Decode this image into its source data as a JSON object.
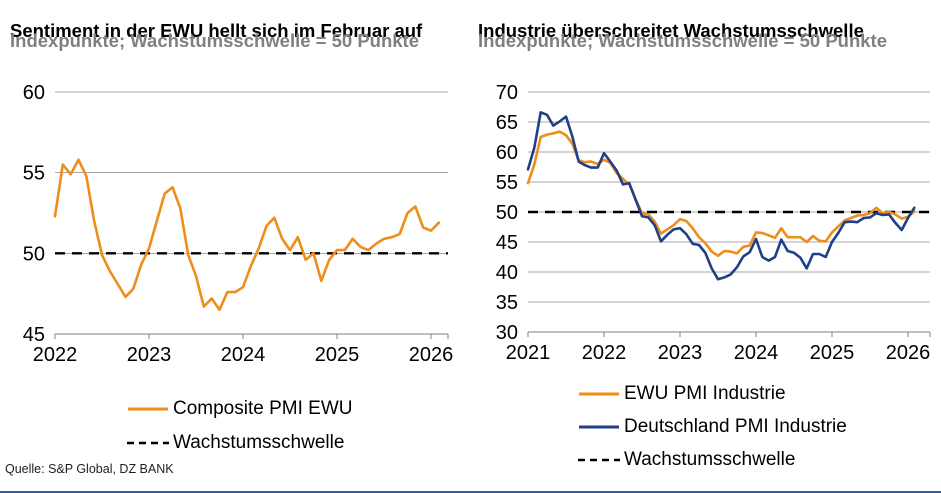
{
  "style": {
    "grid_color": "#a8a8a8",
    "axis_color": "#7f7f7f",
    "threshold_color": "#000000",
    "subtitle_color": "#808080",
    "orange": "#ee8d1a",
    "blue": "#1f4088"
  },
  "footer": {
    "source": "Quelle: S&P Global, DZ BANK"
  },
  "chart_data": [
    {
      "type": "line",
      "title": "Sentiment in der EWU hellt sich im Februar auf",
      "subtitle": "Indexpunkte; Wachstumsschwelle = 50 Punkte",
      "x_frequency": "monthly",
      "x_start": "2022-01",
      "x_end": "2026-02",
      "x_tick_labels": [
        "2022",
        "2023",
        "2024",
        "2025",
        "2026"
      ],
      "ylim": [
        45,
        60
      ],
      "yticks": [
        45,
        50,
        55,
        60
      ],
      "grid": true,
      "legend_position": "bottom",
      "threshold": {
        "label": "Wachstumsschwelle",
        "value": 50,
        "style": "dashed"
      },
      "series": [
        {
          "name": "Composite PMI EWU",
          "color": "#ee8d1a",
          "values": [
            52.3,
            55.5,
            54.9,
            55.8,
            54.8,
            52.0,
            49.9,
            48.9,
            48.1,
            47.3,
            47.8,
            49.3,
            50.3,
            52.0,
            53.7,
            54.1,
            52.8,
            49.9,
            48.6,
            46.7,
            47.2,
            46.5,
            47.6,
            47.6,
            47.9,
            49.2,
            50.3,
            51.7,
            52.2,
            50.9,
            50.2,
            51.0,
            49.6,
            50.0,
            48.3,
            49.6,
            50.2,
            50.2,
            50.9,
            50.4,
            50.2,
            50.6,
            50.9,
            51.0,
            51.2,
            52.5,
            52.9,
            51.6,
            51.4,
            51.9
          ]
        }
      ]
    },
    {
      "type": "line",
      "title": "Industrie überschreitet Wachstumsschwelle",
      "subtitle": "Indexpunkte; Wachstumsschwelle = 50 Punkte",
      "x_frequency": "monthly",
      "x_start": "2021-01",
      "x_end": "2026-02",
      "x_tick_labels": [
        "2021",
        "2022",
        "2023",
        "2024",
        "2025",
        "2026"
      ],
      "ylim": [
        30,
        70
      ],
      "yticks": [
        30,
        35,
        40,
        45,
        50,
        55,
        60,
        65,
        70
      ],
      "grid": true,
      "legend_position": "bottom",
      "threshold": {
        "label": "Wachstumsschwelle",
        "value": 50,
        "style": "dashed"
      },
      "series": [
        {
          "name": "EWU PMI Industrie",
          "color": "#ee8d1a",
          "values": [
            54.8,
            57.9,
            62.5,
            62.9,
            63.1,
            63.4,
            62.8,
            61.4,
            58.6,
            58.3,
            58.4,
            58.0,
            58.7,
            58.2,
            56.5,
            55.5,
            54.6,
            52.1,
            49.8,
            49.6,
            48.4,
            46.4,
            47.1,
            47.8,
            48.8,
            48.5,
            47.3,
            45.8,
            44.8,
            43.4,
            42.7,
            43.5,
            43.4,
            43.1,
            44.2,
            44.4,
            46.6,
            46.5,
            46.1,
            45.7,
            47.3,
            45.8,
            45.8,
            45.8,
            45.0,
            46.0,
            45.2,
            45.1,
            46.6,
            47.6,
            48.6,
            49.0,
            49.4,
            49.5,
            49.8,
            50.7,
            49.8,
            50.0,
            49.6,
            48.9,
            49.2,
            50.1
          ]
        },
        {
          "name": "Deutschland PMI Industrie",
          "color": "#1f4088",
          "values": [
            57.1,
            60.7,
            66.6,
            66.2,
            64.4,
            65.1,
            65.9,
            62.6,
            58.4,
            57.8,
            57.4,
            57.4,
            59.8,
            58.4,
            56.9,
            54.6,
            54.8,
            52.0,
            49.3,
            49.1,
            47.8,
            45.1,
            46.2,
            47.1,
            47.3,
            46.3,
            44.7,
            44.5,
            43.2,
            40.6,
            38.8,
            39.1,
            39.6,
            40.8,
            42.6,
            43.3,
            45.5,
            42.5,
            41.9,
            42.5,
            45.4,
            43.5,
            43.2,
            42.4,
            40.6,
            43.0,
            43.0,
            42.5,
            45.0,
            46.5,
            48.3,
            48.4,
            48.3,
            49.0,
            49.1,
            49.8,
            49.5,
            49.6,
            48.2,
            47.0,
            49.0,
            50.7
          ]
        }
      ]
    }
  ]
}
